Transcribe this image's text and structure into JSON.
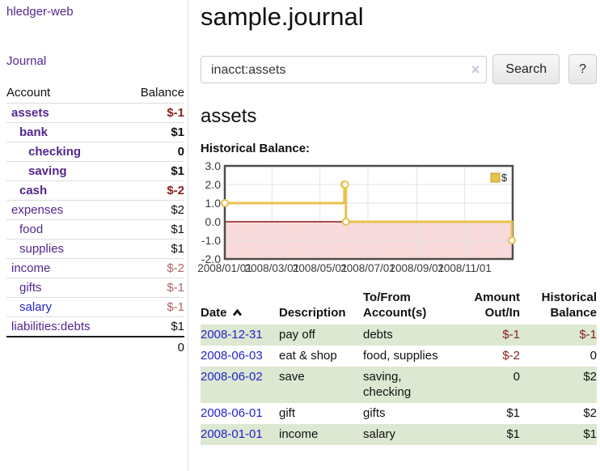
{
  "sidebar": {
    "app_title": "hledger-web",
    "journal_link": "Journal",
    "accounts": {
      "header": {
        "account": "Account",
        "balance": "Balance"
      },
      "rows": [
        {
          "name": "assets",
          "indent": 1,
          "bold": true,
          "balance": "$-1",
          "negative": true
        },
        {
          "name": "bank",
          "indent": 2,
          "bold": true,
          "balance": "$1"
        },
        {
          "name": "checking",
          "indent": 3,
          "bold": true,
          "balance": "0"
        },
        {
          "name": "saving",
          "indent": 3,
          "bold": true,
          "balance": "$1"
        },
        {
          "name": "cash",
          "indent": 2,
          "bold": true,
          "balance": "$-2",
          "negative": true
        },
        {
          "name": "expenses",
          "indent": 1,
          "bold": false,
          "balance": "$2"
        },
        {
          "name": "food",
          "indent": 2,
          "bold": false,
          "balance": "$1"
        },
        {
          "name": "supplies",
          "indent": 2,
          "bold": false,
          "balance": "$1"
        },
        {
          "name": "income",
          "indent": 1,
          "bold": false,
          "balance": "$-2",
          "negative": true
        },
        {
          "name": "gifts",
          "indent": 2,
          "bold": false,
          "balance": "$-1",
          "negative": true
        },
        {
          "name": "salary",
          "indent": 2,
          "bold": false,
          "balance": "$-1",
          "negative": true,
          "unvisited": true
        },
        {
          "name": "liabilities:debts",
          "indent": 1,
          "bold": false,
          "balance": "$1"
        }
      ],
      "total": "0"
    }
  },
  "main": {
    "title": "sample.journal",
    "search": {
      "value": "inacct:assets",
      "button_label": "Search",
      "help_label": "?",
      "clear_icon": "×"
    },
    "account_heading": "assets",
    "chart_label": "Historical Balance:"
  },
  "chart_data": {
    "type": "line",
    "step": true,
    "title": "Historical Balance",
    "legend": "$",
    "legend_position": "top-right",
    "grid": true,
    "ylim": [
      -2,
      3
    ],
    "y_ticks": [
      3.0,
      2.0,
      1.0,
      0.0,
      -1.0,
      -2.0
    ],
    "x_ticks": [
      "2008/01/01",
      "2008/03/01",
      "2008/05/01",
      "2008/07/01",
      "2008/09/01",
      "2008/11/01"
    ],
    "xrange": [
      "2008-01-01",
      "2009-01-01"
    ],
    "series": [
      {
        "name": "$",
        "color": "#e8c24d",
        "points": [
          [
            "2008-01-01",
            1
          ],
          [
            "2008-06-01",
            2
          ],
          [
            "2008-06-02",
            2
          ],
          [
            "2008-06-03",
            0
          ],
          [
            "2008-12-31",
            -1
          ]
        ]
      }
    ],
    "negative_fill": "#f9dbdb",
    "zero_line_color": "#8c1a1a",
    "border_color": "#4d4d4d",
    "grid_color": "#e3e3e3"
  },
  "register": {
    "headers": [
      {
        "label": "Date",
        "sort": "asc"
      },
      {
        "label": "Description"
      },
      {
        "label": "To/From Account(s)"
      },
      {
        "label": "Amount Out/In",
        "align": "right"
      },
      {
        "label": "Historical Balance",
        "align": "right"
      }
    ],
    "rows": [
      {
        "date": "2008-12-31",
        "description": "pay off",
        "accounts": "debts",
        "amount": "$-1",
        "amount_negative": true,
        "balance": "$-1",
        "balance_negative": true
      },
      {
        "date": "2008-06-03",
        "description": "eat & shop",
        "accounts": "food, supplies",
        "amount": "$-2",
        "amount_negative": true,
        "balance": "0"
      },
      {
        "date": "2008-06-02",
        "description": "save",
        "accounts": "saving, checking",
        "amount": "0",
        "balance": "$2"
      },
      {
        "date": "2008-06-01",
        "description": "gift",
        "accounts": "gifts",
        "amount": "$1",
        "balance": "$2"
      },
      {
        "date": "2008-01-01",
        "description": "income",
        "accounts": "salary",
        "amount": "$1",
        "balance": "$1"
      }
    ]
  }
}
